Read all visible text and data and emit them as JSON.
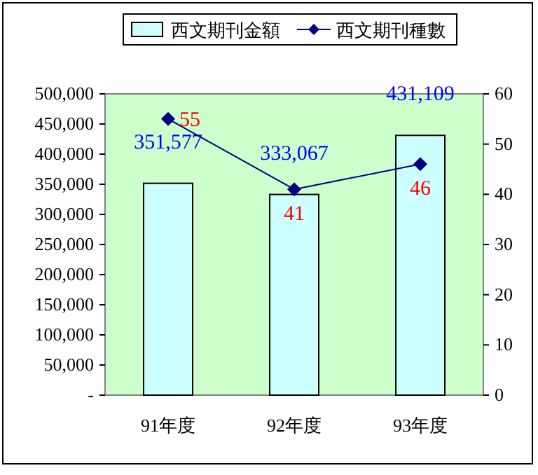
{
  "chart_data": {
    "type": "bar",
    "categories": [
      "91年度",
      "92年度",
      "93年度"
    ],
    "series": [
      {
        "name": "西文期刊金額",
        "color": "#ccffff",
        "values": [
          351577,
          333067,
          431109
        ],
        "value_labels": [
          "351,577",
          "333,067",
          "431,109"
        ]
      },
      {
        "name": "西文期刊種數",
        "type": "line",
        "axis": "y2",
        "color": "#000080",
        "values": [
          55,
          41,
          46
        ],
        "value_labels": [
          "55",
          "41",
          "46"
        ]
      }
    ],
    "ylim": [
      0,
      500000
    ],
    "yticks": [
      {
        "value": 0,
        "label": "-"
      },
      {
        "value": 50000,
        "label": "50,000"
      },
      {
        "value": 100000,
        "label": "100,000"
      },
      {
        "value": 150000,
        "label": "150,000"
      },
      {
        "value": 200000,
        "label": "200,000"
      },
      {
        "value": 250000,
        "label": "250,000"
      },
      {
        "value": 300000,
        "label": "300,000"
      },
      {
        "value": 350000,
        "label": "350,000"
      },
      {
        "value": 400000,
        "label": "400,000"
      },
      {
        "value": 450000,
        "label": "450,000"
      },
      {
        "value": 500000,
        "label": "500,000"
      }
    ],
    "y2lim": [
      0,
      60
    ],
    "y2ticks": [
      0,
      10,
      20,
      30,
      40,
      50,
      60
    ],
    "legend": "top",
    "marker": "diamond",
    "line_style": "solid"
  }
}
